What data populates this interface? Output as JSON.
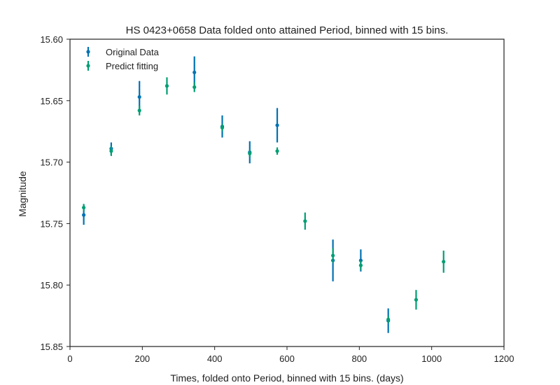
{
  "chart_data": {
    "type": "scatter",
    "title": "HS 0423+0658 Data folded onto attained Period, binned with 15 bins.",
    "xlabel": "Times, folded onto Period, binned with 15 bins. (days)",
    "ylabel": "Magnitude",
    "xlim": [
      0,
      1200
    ],
    "ylim": [
      15.85,
      15.6
    ],
    "y_inverted": true,
    "xticks": [
      0,
      200,
      400,
      600,
      800,
      1000,
      1200
    ],
    "xtick_labels": [
      "0",
      "200",
      "400",
      "600",
      "800",
      "1000",
      "1200"
    ],
    "yticks": [
      15.6,
      15.65,
      15.7,
      15.75,
      15.8,
      15.85
    ],
    "ytick_labels": [
      "15.60",
      "15.65",
      "15.70",
      "15.75",
      "15.80",
      "15.85"
    ],
    "grid": false,
    "legend_position": "top-left",
    "series": [
      {
        "name": "Original Data",
        "color": "#0072b2",
        "points": [
          {
            "x": 38,
            "y": 15.743,
            "err": 0.008
          },
          {
            "x": 114,
            "y": 15.689,
            "err": 0.005
          },
          {
            "x": 192,
            "y": 15.647,
            "err": 0.013
          },
          {
            "x": 344,
            "y": 15.627,
            "err": 0.013
          },
          {
            "x": 421,
            "y": 15.671,
            "err": 0.009
          },
          {
            "x": 497,
            "y": 15.692,
            "err": 0.009
          },
          {
            "x": 573,
            "y": 15.67,
            "err": 0.014
          },
          {
            "x": 727,
            "y": 15.78,
            "err": 0.017
          },
          {
            "x": 804,
            "y": 15.78,
            "err": 0.009
          },
          {
            "x": 880,
            "y": 15.829,
            "err": 0.01
          }
        ]
      },
      {
        "name": "Predict fitting",
        "color": "#009e73",
        "points": [
          {
            "x": 38,
            "y": 15.737,
            "err": 0.003
          },
          {
            "x": 114,
            "y": 15.691,
            "err": 0.004
          },
          {
            "x": 192,
            "y": 15.658,
            "err": 0.004
          },
          {
            "x": 268,
            "y": 15.638,
            "err": 0.007
          },
          {
            "x": 344,
            "y": 15.639,
            "err": 0.004
          },
          {
            "x": 421,
            "y": 15.672,
            "err": 0.003
          },
          {
            "x": 497,
            "y": 15.693,
            "err": 0.003
          },
          {
            "x": 573,
            "y": 15.691,
            "err": 0.003
          },
          {
            "x": 650,
            "y": 15.748,
            "err": 0.007
          },
          {
            "x": 727,
            "y": 15.776,
            "err": 0.006
          },
          {
            "x": 804,
            "y": 15.784,
            "err": 0.004
          },
          {
            "x": 880,
            "y": 15.828,
            "err": 0.003
          },
          {
            "x": 957,
            "y": 15.812,
            "err": 0.008
          },
          {
            "x": 1033,
            "y": 15.781,
            "err": 0.009
          }
        ]
      }
    ]
  }
}
